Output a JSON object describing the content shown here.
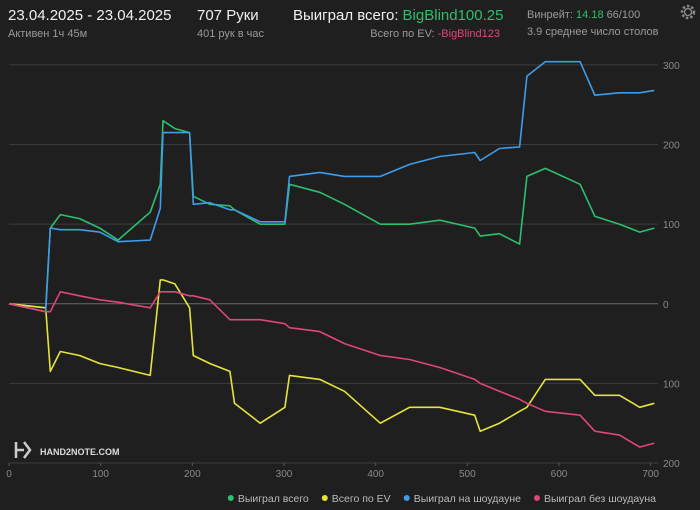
{
  "header": {
    "date_range": "23.04.2025 - 23.04.2025",
    "active": "Активен 1ч 45м",
    "hands": "707 Руки",
    "hands_per_hour": "401 рук в час",
    "won_label": "Выиграл всего:",
    "won_value": "BigBlind100.25",
    "ev_label": "Всего по EV:",
    "ev_value": "-BigBlind123",
    "winrate_label": "Винрейт:",
    "winrate_value": "14.18",
    "winrate_extra": "66/100",
    "tables": "3.9 среднее число столов",
    "logo": "HAND2NOTE.COM"
  },
  "chart_data": {
    "type": "line",
    "x": [
      0,
      40,
      45,
      56,
      77,
      99,
      119,
      154,
      165,
      168,
      181,
      197,
      201,
      219,
      241,
      246,
      274,
      301,
      306,
      339,
      366,
      405,
      437,
      470,
      508,
      514,
      535,
      557,
      565,
      585,
      623,
      639,
      666,
      688,
      704
    ],
    "series": [
      {
        "name": "Выиграл всего",
        "color": "#2dbf6b",
        "values": [
          0,
          -5,
          95,
          112,
          107,
          95,
          80,
          115,
          150,
          230,
          220,
          215,
          135,
          125,
          123,
          118,
          100,
          100,
          150,
          140,
          125,
          100,
          100,
          105,
          95,
          85,
          88,
          75,
          160,
          170,
          150,
          110,
          100,
          90,
          95
        ]
      },
      {
        "name": "Всего по EV",
        "color": "#e6e43a",
        "values": [
          0,
          -5,
          -85,
          -60,
          -65,
          -75,
          -80,
          -90,
          30,
          30,
          25,
          -5,
          -65,
          -75,
          -85,
          -125,
          -150,
          -130,
          -90,
          -95,
          -110,
          -150,
          -130,
          -130,
          -140,
          -160,
          -150,
          -135,
          -130,
          -95,
          -95,
          -115,
          -115,
          -130,
          -125
        ]
      },
      {
        "name": "Выиграл на шоудауне",
        "color": "#3e9cea",
        "values": [
          0,
          -10,
          95,
          93,
          93,
          90,
          78,
          80,
          120,
          215,
          215,
          215,
          125,
          127,
          118,
          118,
          103,
          103,
          160,
          165,
          160,
          160,
          175,
          185,
          190,
          180,
          195,
          197,
          286,
          304,
          304,
          262,
          265,
          265,
          268
        ]
      },
      {
        "name": "Выиграл без шоудауна",
        "color": "#e0457b",
        "values": [
          0,
          -10,
          -10,
          15,
          10,
          5,
          2,
          -5,
          15,
          15,
          15,
          10,
          10,
          5,
          -20,
          -20,
          -20,
          -25,
          -30,
          -35,
          -50,
          -65,
          -70,
          -80,
          -95,
          -100,
          -110,
          -120,
          -125,
          -135,
          -140,
          -160,
          -165,
          -180,
          -175
        ]
      }
    ],
    "xlim": [
      0,
      708
    ],
    "xticks": [
      0,
      100,
      200,
      300,
      400,
      500,
      600,
      700
    ],
    "ylim": [
      -200,
      320
    ],
    "yticks": [
      {
        "value": -200,
        "label": "200"
      },
      {
        "value": -100,
        "label": "100"
      },
      0,
      100,
      200,
      300
    ],
    "grid": true
  }
}
